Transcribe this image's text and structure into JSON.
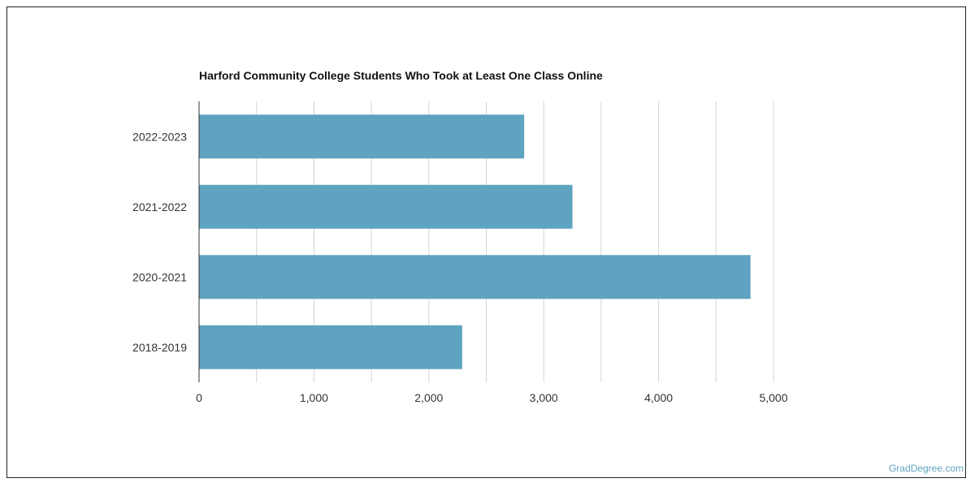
{
  "chart_data": {
    "type": "bar",
    "orientation": "horizontal",
    "title": "Harford Community College Students Who Took at Least One Class Online",
    "categories": [
      "2022-2023",
      "2021-2022",
      "2020-2021",
      "2018-2019"
    ],
    "values": [
      2830,
      3250,
      4800,
      2290
    ],
    "xlim": [
      0,
      5000
    ],
    "xticks": [
      0,
      1000,
      2000,
      3000,
      4000,
      5000
    ],
    "xtick_labels": [
      "0",
      "1,000",
      "2,000",
      "3,000",
      "4,000",
      "5,000"
    ],
    "grid": true,
    "bar_color": "#5ea3bf"
  },
  "credit": "GradDegree.com"
}
